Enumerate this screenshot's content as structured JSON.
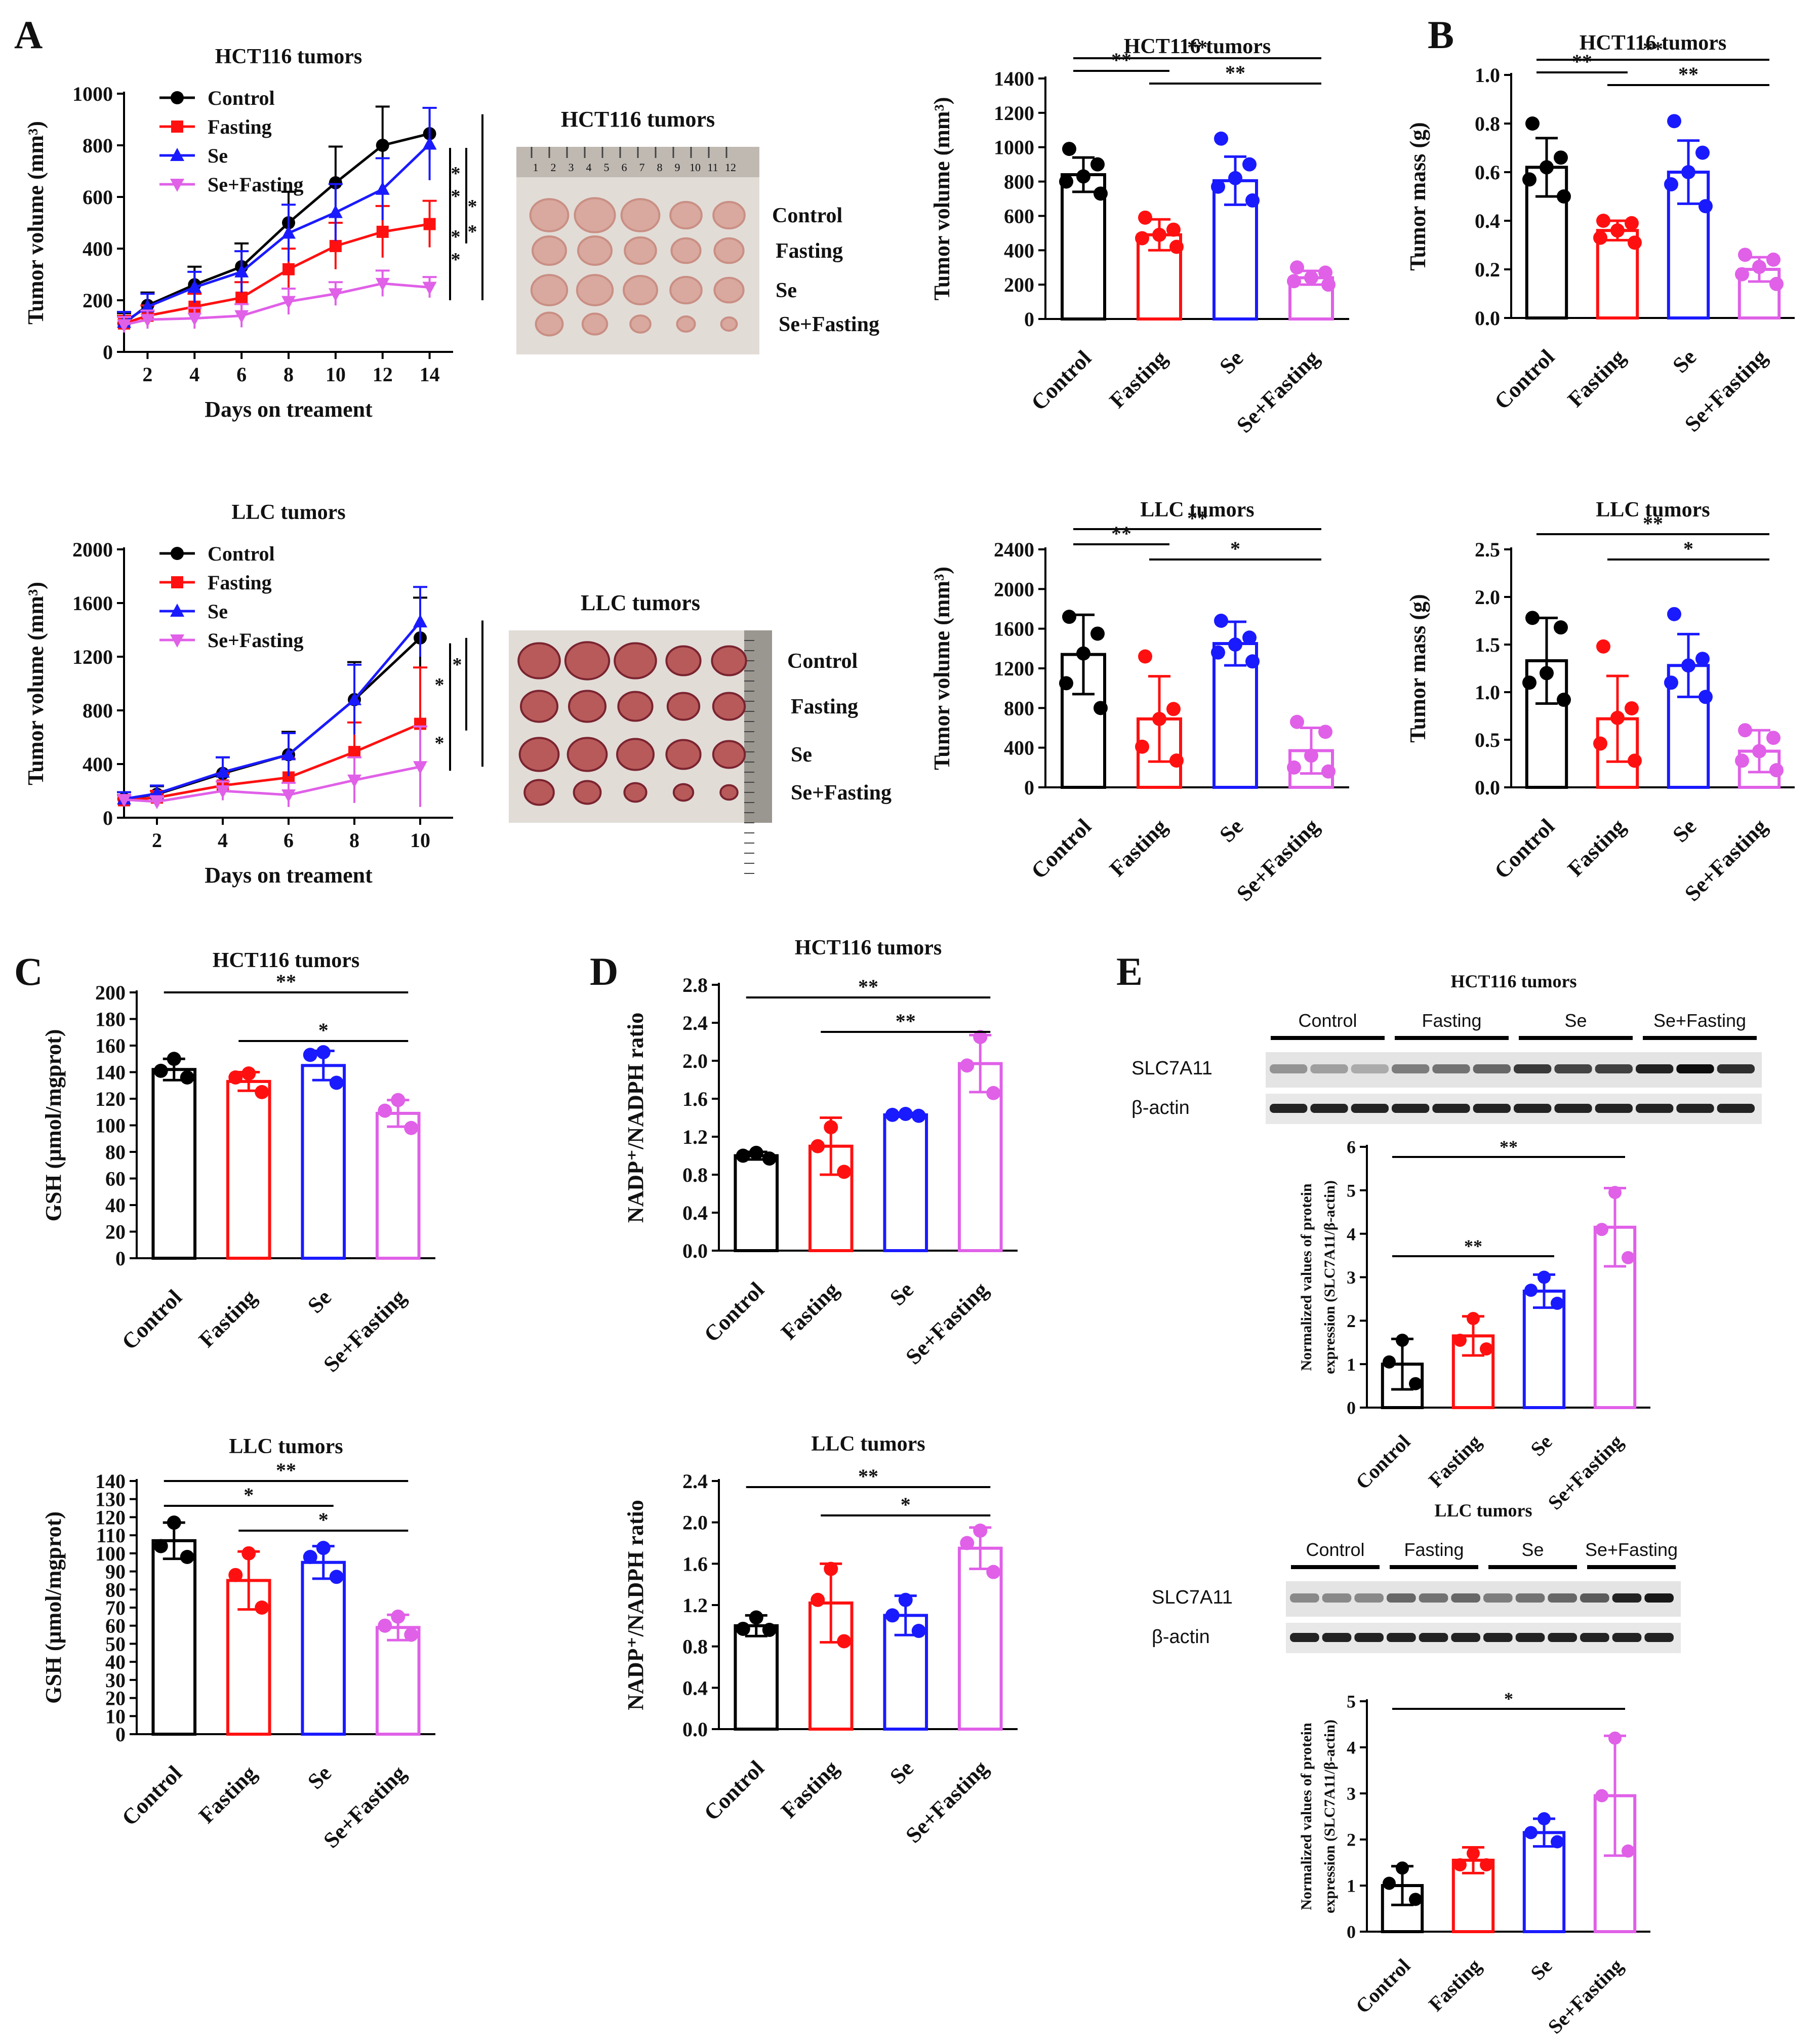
{
  "colors": {
    "Control": "#000000",
    "Fasting": "#ff1010",
    "Se": "#1a1aff",
    "Se+Fasting": "#e060e8"
  },
  "groups": [
    "Control",
    "Fasting",
    "Se",
    "Se+Fasting"
  ],
  "panel_letters": [
    "A",
    "B",
    "C",
    "D",
    "E"
  ],
  "photos": [
    {
      "title": "HCT116 tumors",
      "rows": [
        "Control",
        "Fasting",
        "Se",
        "Se+Fasting"
      ],
      "ruler": [
        "1",
        "2",
        "3",
        "4",
        "5",
        "6",
        "7",
        "8",
        "9",
        "10",
        "11",
        "12"
      ]
    },
    {
      "title": "LLC tumors",
      "rows": [
        "Control",
        "Fasting",
        "Se",
        "Se+Fasting"
      ]
    }
  ],
  "blots": [
    {
      "title": "HCT116 tumors",
      "groups": [
        "Control",
        "Fasting",
        "Se",
        "Se+Fasting"
      ],
      "bands": [
        "SLC7A11",
        "β-actin"
      ]
    },
    {
      "title": "LLC tumors",
      "groups": [
        "Control",
        "Fasting",
        "Se",
        "Se+Fasting"
      ],
      "bands": [
        "SLC7A11",
        "β-actin"
      ]
    }
  ],
  "chart_data": [
    {
      "id": "lineA1",
      "type": "line",
      "title": "HCT116 tumors",
      "xlabel": "Days on treament",
      "ylabel": "Tumor volume (mm³)",
      "x": [
        1,
        2,
        4,
        6,
        8,
        10,
        12,
        14
      ],
      "xlim": [
        1,
        15
      ],
      "ylim": [
        0,
        1000
      ],
      "xticks": [
        "2",
        "4",
        "6",
        "8",
        "10",
        "12",
        "14"
      ],
      "yticks": [
        "0",
        "200",
        "400",
        "600",
        "800",
        "1000"
      ],
      "series": [
        {
          "name": "Control",
          "values": [
            110,
            180,
            260,
            330,
            500,
            655,
            800,
            845
          ],
          "err": [
            40,
            50,
            70,
            90,
            120,
            140,
            150,
            100
          ]
        },
        {
          "name": "Fasting",
          "values": [
            110,
            140,
            175,
            210,
            320,
            410,
            465,
            495
          ],
          "err": [
            30,
            40,
            50,
            60,
            80,
            90,
            100,
            90
          ]
        },
        {
          "name": "Se",
          "values": [
            115,
            175,
            250,
            310,
            460,
            540,
            630,
            805
          ],
          "err": [
            40,
            50,
            60,
            80,
            110,
            110,
            120,
            140
          ]
        },
        {
          "name": "Se+Fasting",
          "values": [
            105,
            125,
            130,
            140,
            195,
            225,
            265,
            250
          ],
          "err": [
            30,
            35,
            40,
            45,
            50,
            45,
            50,
            40
          ]
        }
      ],
      "sig": [
        "*",
        "*",
        "*",
        "*",
        "*",
        "*"
      ]
    },
    {
      "id": "lineA2",
      "type": "line",
      "title": "LLC tumors",
      "xlabel": "Days on treament",
      "ylabel": "Tumor volume (mm³)",
      "x": [
        1,
        2,
        4,
        6,
        8,
        10
      ],
      "xlim": [
        1,
        11
      ],
      "ylim": [
        0,
        2000
      ],
      "xticks": [
        "2",
        "4",
        "6",
        "8",
        "10"
      ],
      "yticks": [
        "0",
        "400",
        "800",
        "1200",
        "1600",
        "2000"
      ],
      "series": [
        {
          "name": "Control",
          "values": [
            140,
            175,
            330,
            470,
            880,
            1340
          ],
          "err": [
            50,
            60,
            120,
            170,
            280,
            300
          ]
        },
        {
          "name": "Fasting",
          "values": [
            130,
            150,
            240,
            300,
            490,
            700
          ],
          "err": [
            40,
            50,
            90,
            140,
            220,
            420
          ]
        },
        {
          "name": "Se",
          "values": [
            140,
            180,
            340,
            470,
            880,
            1460
          ],
          "err": [
            50,
            60,
            110,
            160,
            260,
            260
          ]
        },
        {
          "name": "Se+Fasting",
          "values": [
            135,
            120,
            200,
            170,
            280,
            380
          ],
          "err": [
            30,
            40,
            70,
            90,
            170,
            300
          ]
        }
      ],
      "sig": [
        "*",
        "*",
        "*"
      ]
    },
    {
      "id": "barA1",
      "type": "bar",
      "title": "HCT116 tumors",
      "ylabel": "Tumor volume (mm³)",
      "ylim": [
        0,
        1400
      ],
      "yticks": [
        "0",
        "200",
        "400",
        "600",
        "800",
        "1000",
        "1200",
        "1400"
      ],
      "categories": [
        "Control",
        "Fasting",
        "Se",
        "Se+Fasting"
      ],
      "values": [
        840,
        490,
        805,
        240
      ],
      "err": [
        100,
        90,
        140,
        40
      ],
      "points": [
        [
          990,
          900,
          830,
          800,
          730
        ],
        [
          590,
          520,
          490,
          470,
          420
        ],
        [
          1050,
          900,
          820,
          770,
          690
        ],
        [
          300,
          270,
          240,
          220,
          200
        ]
      ],
      "sig": [
        {
          "a": 0,
          "b": 3,
          "label": "**"
        },
        {
          "a": 0,
          "b": 1,
          "label": "**"
        },
        {
          "a": 1,
          "b": 3,
          "label": "**"
        }
      ]
    },
    {
      "id": "barB1",
      "type": "bar",
      "title": "HCT116 tumors",
      "ylabel": "Tumor mass (g)",
      "ylim": [
        0,
        1.0
      ],
      "yticks": [
        "0.0",
        "0.2",
        "0.4",
        "0.6",
        "0.8",
        "1.0"
      ],
      "categories": [
        "Control",
        "Fasting",
        "Se",
        "Se+Fasting"
      ],
      "values": [
        0.62,
        0.36,
        0.6,
        0.2
      ],
      "err": [
        0.12,
        0.04,
        0.13,
        0.05
      ],
      "points": [
        [
          0.8,
          0.66,
          0.62,
          0.57,
          0.5
        ],
        [
          0.4,
          0.39,
          0.36,
          0.33,
          0.31
        ],
        [
          0.81,
          0.68,
          0.6,
          0.55,
          0.46
        ],
        [
          0.26,
          0.24,
          0.21,
          0.18,
          0.14
        ]
      ],
      "sig": [
        {
          "a": 0,
          "b": 3,
          "label": "**"
        },
        {
          "a": 0,
          "b": 1,
          "label": "**"
        },
        {
          "a": 1,
          "b": 3,
          "label": "**"
        }
      ]
    },
    {
      "id": "barA2",
      "type": "bar",
      "title": "LLC tumors",
      "ylabel": "Tumor volume (mm³)",
      "ylim": [
        0,
        2400
      ],
      "yticks": [
        "0",
        "400",
        "800",
        "1200",
        "1600",
        "2000",
        "2400"
      ],
      "categories": [
        "Control",
        "Fasting",
        "Se",
        "Se+Fasting"
      ],
      "values": [
        1340,
        690,
        1450,
        370
      ],
      "err": [
        400,
        430,
        220,
        230
      ],
      "points": [
        [
          1720,
          1550,
          1350,
          1050,
          800
        ],
        [
          1320,
          790,
          690,
          410,
          270
        ],
        [
          1680,
          1510,
          1440,
          1360,
          1270
        ],
        [
          660,
          560,
          320,
          200,
          160
        ]
      ],
      "sig": [
        {
          "a": 0,
          "b": 3,
          "label": "**"
        },
        {
          "a": 0,
          "b": 1,
          "label": "**"
        },
        {
          "a": 1,
          "b": 3,
          "label": "*"
        }
      ]
    },
    {
      "id": "barB2",
      "type": "bar",
      "title": "LLC tumors",
      "ylabel": "Tumor mass (g)",
      "ylim": [
        0,
        2.5
      ],
      "yticks": [
        "0.0",
        "0.5",
        "1.0",
        "1.5",
        "2.0",
        "2.5"
      ],
      "categories": [
        "Control",
        "Fasting",
        "Se",
        "Se+Fasting"
      ],
      "values": [
        1.33,
        0.72,
        1.28,
        0.38
      ],
      "err": [
        0.45,
        0.45,
        0.33,
        0.22
      ],
      "points": [
        [
          1.78,
          1.68,
          1.2,
          1.1,
          0.92
        ],
        [
          1.48,
          0.83,
          0.73,
          0.46,
          0.28
        ],
        [
          1.82,
          1.35,
          1.28,
          1.1,
          0.95
        ],
        [
          0.6,
          0.52,
          0.38,
          0.28,
          0.18
        ]
      ],
      "sig": [
        {
          "a": 0,
          "b": 3,
          "label": "**"
        },
        {
          "a": 1,
          "b": 3,
          "label": "*"
        }
      ]
    },
    {
      "id": "barC1",
      "type": "bar",
      "title": "HCT116 tumors",
      "ylabel": "GSH (μmol/mgprot)",
      "ylim": [
        0,
        200
      ],
      "yticks": [
        "0",
        "20",
        "40",
        "60",
        "80",
        "100",
        "120",
        "140",
        "160",
        "180",
        "200"
      ],
      "categories": [
        "Control",
        "Fasting",
        "Se",
        "Se+Fasting"
      ],
      "values": [
        142,
        133,
        145,
        109
      ],
      "err": [
        8,
        7,
        11,
        10
      ],
      "points": [
        [
          150,
          141,
          136
        ],
        [
          139,
          136,
          125
        ],
        [
          155,
          153,
          132
        ],
        [
          119,
          111,
          98
        ]
      ],
      "sig": [
        {
          "a": 0,
          "b": 3,
          "label": "**"
        },
        {
          "a": 1,
          "b": 3,
          "label": "*"
        }
      ]
    },
    {
      "id": "barC2",
      "type": "bar",
      "title": "LLC tumors",
      "ylabel": "GSH (μmol/mgprot)",
      "ylim": [
        0,
        140
      ],
      "yticks": [
        "0",
        "10",
        "20",
        "30",
        "40",
        "50",
        "60",
        "70",
        "80",
        "90",
        "100",
        "110",
        "120",
        "130",
        "140"
      ],
      "categories": [
        "Control",
        "Fasting",
        "Se",
        "Se+Fasting"
      ],
      "values": [
        107,
        85,
        95,
        59
      ],
      "err": [
        10,
        16,
        9,
        7
      ],
      "points": [
        [
          117,
          104,
          98
        ],
        [
          100,
          88,
          70
        ],
        [
          103,
          98,
          87
        ],
        [
          65,
          60,
          55
        ]
      ],
      "sig": [
        {
          "a": 0,
          "b": 3,
          "label": "**"
        },
        {
          "a": 0,
          "b": 2,
          "label": "*"
        },
        {
          "a": 1,
          "b": 3,
          "label": "*"
        }
      ]
    },
    {
      "id": "barD1",
      "type": "bar",
      "title": "HCT116 tumors",
      "ylabel": "NADP⁺/NADPH ratio",
      "ylim": [
        0,
        2.8
      ],
      "yticks": [
        "0.0",
        "0.4",
        "0.8",
        "1.2",
        "1.6",
        "2.0",
        "2.4",
        "2.8"
      ],
      "categories": [
        "Control",
        "Fasting",
        "Se",
        "Se+Fasting"
      ],
      "values": [
        1.0,
        1.1,
        1.43,
        1.97
      ],
      "err": [
        0.04,
        0.3,
        0.02,
        0.3
      ],
      "points": [
        [
          1.03,
          1.0,
          0.97
        ],
        [
          1.3,
          1.1,
          0.83
        ],
        [
          1.44,
          1.43,
          1.42
        ],
        [
          2.25,
          1.95,
          1.66
        ]
      ],
      "sig": [
        {
          "a": 0,
          "b": 3,
          "label": "**"
        },
        {
          "a": 1,
          "b": 3,
          "label": "**"
        }
      ]
    },
    {
      "id": "barD2",
      "type": "bar",
      "title": "LLC tumors",
      "ylabel": "NADP⁺/NADPH ratio",
      "ylim": [
        0,
        2.4
      ],
      "yticks": [
        "0.0",
        "0.4",
        "0.8",
        "1.2",
        "1.6",
        "2.0",
        "2.4"
      ],
      "categories": [
        "Control",
        "Fasting",
        "Se",
        "Se+Fasting"
      ],
      "values": [
        1.0,
        1.22,
        1.1,
        1.75
      ],
      "err": [
        0.1,
        0.38,
        0.19,
        0.2
      ],
      "points": [
        [
          1.08,
          0.97,
          0.96
        ],
        [
          1.55,
          1.25,
          0.85
        ],
        [
          1.25,
          1.1,
          0.95
        ],
        [
          1.92,
          1.8,
          1.52
        ]
      ],
      "sig": [
        {
          "a": 0,
          "b": 3,
          "label": "**"
        },
        {
          "a": 1,
          "b": 3,
          "label": "*"
        }
      ]
    },
    {
      "id": "barE1",
      "type": "bar",
      "title": "",
      "ylabel": "Normalized values of protein expression (SLC7A11/β-actin)",
      "ylim": [
        0,
        6
      ],
      "yticks": [
        "0",
        "1",
        "2",
        "3",
        "4",
        "5",
        "6"
      ],
      "categories": [
        "Control",
        "Fasting",
        "Se",
        "Se+Fasting"
      ],
      "values": [
        1.0,
        1.65,
        2.68,
        4.15
      ],
      "err": [
        0.58,
        0.45,
        0.38,
        0.9
      ],
      "points": [
        [
          1.55,
          1.05,
          0.55
        ],
        [
          2.05,
          1.55,
          1.35
        ],
        [
          3.0,
          2.7,
          2.4
        ],
        [
          4.95,
          4.1,
          3.45
        ]
      ],
      "sig": [
        {
          "a": 0,
          "b": 3,
          "label": "**"
        },
        {
          "a": 0,
          "b": 2,
          "label": "**"
        }
      ]
    },
    {
      "id": "barE2",
      "type": "bar",
      "title": "",
      "ylabel": "Normalized values of protein expression (SLC7A11/β-actin)",
      "ylim": [
        0,
        5
      ],
      "yticks": [
        "0",
        "1",
        "2",
        "3",
        "4",
        "5"
      ],
      "categories": [
        "Control",
        "Fasting",
        "Se",
        "Se+Fasting"
      ],
      "values": [
        1.0,
        1.55,
        2.15,
        2.95
      ],
      "err": [
        0.42,
        0.28,
        0.3,
        1.3
      ],
      "points": [
        [
          1.38,
          1.05,
          0.7
        ],
        [
          1.7,
          1.45,
          1.45
        ],
        [
          2.45,
          2.15,
          1.95
        ],
        [
          4.2,
          2.95,
          1.75
        ]
      ],
      "sig": [
        {
          "a": 0,
          "b": 3,
          "label": "*"
        }
      ]
    }
  ]
}
